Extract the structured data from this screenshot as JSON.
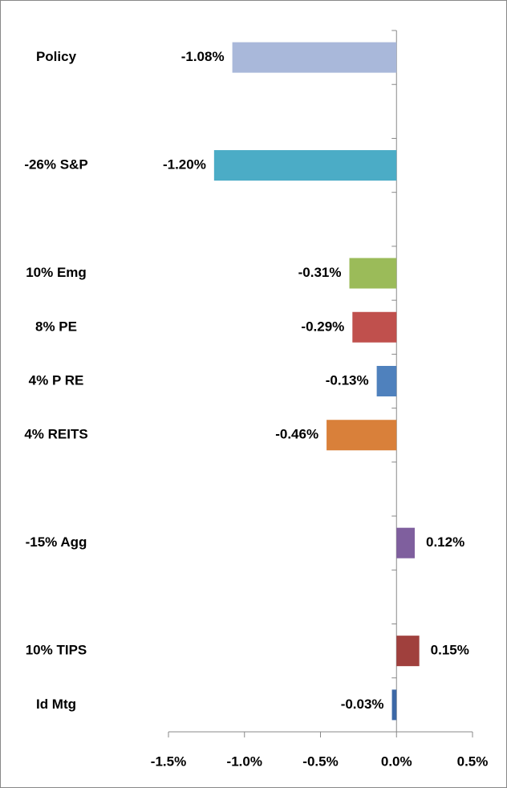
{
  "chart_data": {
    "type": "bar",
    "orientation": "horizontal",
    "categories": [
      "Policy",
      null,
      "-26% S&P",
      null,
      "10% Emg",
      "8% PE",
      "4% P RE",
      "4% REITS",
      null,
      "-15% Agg",
      null,
      "10% TIPS",
      "Id Mtg"
    ],
    "values": [
      -1.08,
      null,
      -1.2,
      null,
      -0.31,
      -0.29,
      -0.13,
      -0.46,
      null,
      0.12,
      null,
      0.15,
      -0.03
    ],
    "value_labels": [
      "-1.08%",
      null,
      "-1.20%",
      null,
      "-0.31%",
      "-0.29%",
      "-0.13%",
      "-0.46%",
      null,
      "0.12%",
      null,
      "0.15%",
      "-0.03%"
    ],
    "colors": [
      "#a9b8da",
      null,
      "#4bacc6",
      null,
      "#9bbb59",
      "#c0504d",
      "#4f81bd",
      "#d9803a",
      null,
      "#7f5f9e",
      null,
      "#a0403d",
      "#3c68a6"
    ],
    "xlim": [
      -1.5,
      0.5
    ],
    "xticks": [
      {
        "value": -1.5,
        "label": "-1.5%"
      },
      {
        "value": -1.0,
        "label": "-1.0%"
      },
      {
        "value": -0.5,
        "label": "-0.5%"
      },
      {
        "value": 0,
        "label": "0.0%"
      },
      {
        "value": 0.5,
        "label": "0.5%"
      }
    ]
  }
}
